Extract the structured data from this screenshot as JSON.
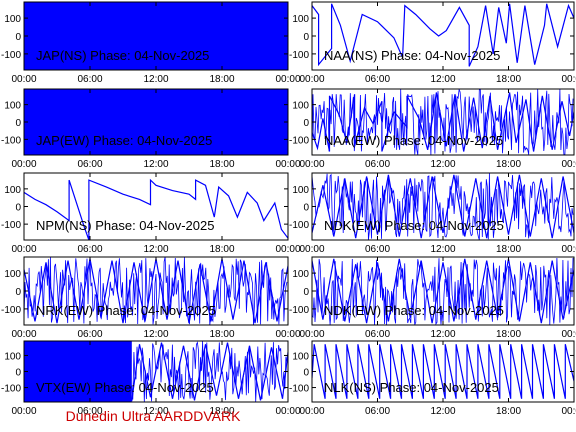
{
  "figure": {
    "footer": "Dunedin Ultra AARDDVARK",
    "footer_color": "#cc0000",
    "trace_color": "#0000ff",
    "frame_color": "#000000",
    "background": "#ffffff"
  },
  "chart_data": [
    {
      "type": "line",
      "title": "JAP(NS) Phase: 04-Nov-2025",
      "fill": "solid",
      "xlim": [
        0,
        24
      ],
      "ylim": [
        -190,
        190
      ],
      "x_ticks": [
        0,
        6,
        12,
        18,
        24
      ],
      "x_tick_labels": [
        "00:00",
        "06:00",
        "12:00",
        "18:00",
        "00:00"
      ],
      "y_ticks": [
        100,
        0,
        -100
      ],
      "y_tick_labels": [
        "100",
        "0",
        "-100"
      ],
      "grid": false,
      "legend": "none"
    },
    {
      "type": "line",
      "title": "NAA(NS) Phase: 04-Nov-2025",
      "fill": "sawtooth",
      "xlim": [
        0,
        24
      ],
      "ylim": [
        -190,
        190
      ],
      "x_ticks": [
        0,
        6,
        12,
        18,
        24
      ],
      "x_tick_labels": [
        "00:00",
        "06:00",
        "12:00",
        "18:00",
        "00:00"
      ],
      "y_ticks": [
        100,
        0,
        -100
      ],
      "y_tick_labels": [
        "100",
        "0",
        "-100"
      ],
      "grid": false,
      "legend": "none",
      "series": [
        {
          "x": [
            0,
            0.6,
            0.6,
            1.8,
            1.8,
            2.6,
            3.5,
            4.6,
            6.0,
            7.5,
            8.3,
            8.5,
            9.5,
            10.8,
            11.6,
            12.3,
            13.5,
            14.4,
            14.4,
            15.2,
            15.9,
            16.6,
            17.1,
            17.8,
            18.1,
            18.8,
            19.5,
            20.4,
            21.3,
            21.5,
            22.5,
            23.5,
            24
          ],
          "y": [
            170,
            120,
            -160,
            -70,
            180,
            60,
            -140,
            120,
            80,
            -10,
            -120,
            170,
            120,
            40,
            0,
            30,
            160,
            60,
            -170,
            -60,
            170,
            -100,
            160,
            -40,
            180,
            -150,
            170,
            -160,
            60,
            180,
            -60,
            170,
            100
          ]
        }
      ]
    },
    {
      "type": "line",
      "title": "JAP(EW) Phase: 04-Nov-2025",
      "fill": "solid",
      "xlim": [
        0,
        24
      ],
      "ylim": [
        -190,
        190
      ],
      "x_ticks": [
        0,
        6,
        12,
        18,
        24
      ],
      "x_tick_labels": [
        "00:00",
        "06:00",
        "12:00",
        "18:00",
        "00:00"
      ],
      "y_ticks": [
        100,
        0,
        -100
      ],
      "y_tick_labels": [
        "100",
        "0",
        "-100"
      ],
      "grid": false,
      "legend": "none"
    },
    {
      "type": "line",
      "title": "NAA(EW) Phase: 04-Nov-2025",
      "fill": "dense",
      "xlim": [
        0,
        24
      ],
      "ylim": [
        -190,
        190
      ],
      "x_ticks": [
        0,
        6,
        12,
        18,
        24
      ],
      "x_tick_labels": [
        "00:00",
        "06:00",
        "12:00",
        "18:00",
        "00:00"
      ],
      "y_ticks": [
        100,
        0,
        -100
      ],
      "y_tick_labels": [
        "100",
        "0",
        "-100"
      ],
      "grid": false,
      "legend": "none",
      "series": [
        {
          "x": [
            0,
            0.5,
            1.0,
            1.6,
            1.6,
            2.5,
            3.2,
            3.9,
            3.9,
            4.8,
            5.6,
            6.4,
            6.4,
            7.5,
            8.7,
            8.7,
            9.8,
            10.6,
            11.4,
            12.3,
            13.1,
            13.9,
            14.8,
            15.6,
            16.3,
            17.0,
            18.1,
            18.7,
            19.6,
            20.3,
            21.1,
            22.0,
            22.9,
            23.6,
            24
          ],
          "y": [
            -60,
            -150,
            20,
            -170,
            150,
            40,
            -120,
            160,
            -140,
            80,
            -10,
            120,
            -170,
            60,
            -30,
            150,
            20,
            -160,
            170,
            -140,
            160,
            -170,
            140,
            -150,
            150,
            -160,
            170,
            -120,
            130,
            -170,
            150,
            -160,
            120,
            -80,
            60
          ]
        }
      ]
    },
    {
      "type": "line",
      "title": "NPM(NS) Phase: 04-Nov-2025",
      "fill": "sawtooth",
      "xlim": [
        0,
        24
      ],
      "ylim": [
        -190,
        190
      ],
      "x_ticks": [
        0,
        6,
        12,
        18,
        24
      ],
      "x_tick_labels": [
        "00:00",
        "06:00",
        "12:00",
        "18:00",
        "00:00"
      ],
      "y_ticks": [
        100,
        0,
        -100
      ],
      "y_tick_labels": [
        "100",
        "0",
        "-100"
      ],
      "grid": false,
      "legend": "none",
      "series": [
        {
          "x": [
            0,
            1.0,
            2.0,
            3.0,
            4.1,
            4.1,
            5.5,
            5.9,
            5.9,
            7.5,
            9.0,
            10.5,
            11.5,
            11.5,
            12.0,
            13.5,
            15.0,
            15.6,
            15.6,
            16.5,
            17.3,
            17.7,
            18.6,
            19.4,
            20.3,
            21.2,
            21.8,
            22.8,
            23.4,
            24
          ],
          "y": [
            80,
            40,
            10,
            -30,
            -80,
            150,
            -120,
            -190,
            150,
            110,
            70,
            40,
            10,
            150,
            120,
            90,
            70,
            40,
            150,
            120,
            -60,
            110,
            60,
            -60,
            80,
            20,
            -80,
            20,
            -130,
            -180
          ]
        }
      ]
    },
    {
      "type": "line",
      "title": "NDK(EW) Phase: 04-Nov-2025",
      "fill": "dense",
      "xlim": [
        0,
        24
      ],
      "ylim": [
        -190,
        190
      ],
      "x_ticks": [
        0,
        6,
        12,
        18,
        24
      ],
      "x_tick_labels": [
        "00:00",
        "06:00",
        "12:00",
        "18:00",
        "00:00"
      ],
      "y_ticks": [
        100,
        0,
        -100
      ],
      "y_tick_labels": [
        "100",
        "0",
        "-100"
      ],
      "grid": false,
      "legend": "none",
      "series": [
        {
          "x": [
            0,
            1.0,
            2.0,
            3.0,
            4.0,
            5.0,
            6.0,
            7.0,
            8.0,
            9.0,
            10.0,
            11.0,
            12.0,
            13.0,
            14.0,
            15.0,
            16.0,
            17.0,
            18.0,
            19.0,
            20.0,
            21.0,
            22.0,
            23.0,
            24
          ],
          "y": [
            -150,
            120,
            -170,
            160,
            -180,
            170,
            -160,
            180,
            -170,
            160,
            -180,
            170,
            -150,
            180,
            -170,
            160,
            -180,
            170,
            -160,
            180,
            -170,
            160,
            -180,
            170,
            -150
          ]
        }
      ]
    },
    {
      "type": "line",
      "title": "NRK(EW) Phase: 04-Nov-2025",
      "fill": "dense",
      "xlim": [
        0,
        24
      ],
      "ylim": [
        -190,
        190
      ],
      "x_ticks": [
        0,
        6,
        12,
        18,
        24
      ],
      "x_tick_labels": [
        "00:00",
        "06:00",
        "12:00",
        "18:00",
        "00:00"
      ],
      "y_ticks": [
        100,
        0,
        -100
      ],
      "y_tick_labels": [
        "100",
        "0",
        "-100"
      ],
      "grid": false,
      "legend": "none",
      "series": [
        {
          "x": [
            0,
            1.0,
            2.0,
            3.0,
            4.0,
            5.0,
            6.0,
            7.0,
            8.0,
            9.0,
            10.0,
            11.0,
            12.0,
            13.0,
            14.0,
            15.0,
            16.0,
            17.0,
            18.0,
            19.0,
            20.0,
            21.0,
            22.0,
            23.0,
            24
          ],
          "y": [
            120,
            -170,
            160,
            -180,
            170,
            -160,
            180,
            -150,
            170,
            -180,
            160,
            -170,
            180,
            -160,
            170,
            -180,
            150,
            -170,
            180,
            -160,
            170,
            -180,
            160,
            -170,
            140
          ]
        }
      ]
    },
    {
      "type": "line",
      "title": "NDK(EW) Phase: 04-Nov-2025",
      "fill": "dense",
      "xlim": [
        0,
        24
      ],
      "ylim": [
        -190,
        190
      ],
      "x_ticks": [
        0,
        6,
        12,
        18,
        24
      ],
      "x_tick_labels": [
        "00:00",
        "06:00",
        "12:00",
        "18:00",
        "00:00"
      ],
      "y_ticks": [
        100,
        0,
        -100
      ],
      "y_tick_labels": [
        "100",
        "0",
        "-100"
      ],
      "grid": false,
      "legend": "none",
      "series": [
        {
          "x": [
            0,
            1.0,
            2.0,
            3.0,
            4.0,
            5.0,
            6.0,
            7.0,
            8.0,
            9.0,
            10.0,
            11.0,
            12.0,
            13.0,
            14.0,
            15.0,
            16.0,
            17.0,
            18.0,
            19.0,
            20.0,
            21.0,
            22.0,
            23.0,
            24
          ],
          "y": [
            170,
            -160,
            180,
            -170,
            150,
            -180,
            160,
            -170,
            180,
            -150,
            170,
            -180,
            160,
            -170,
            180,
            -160,
            170,
            -150,
            180,
            -170,
            160,
            -180,
            170,
            -160,
            120
          ]
        }
      ]
    },
    {
      "type": "line",
      "title": "VTX(EW) Phase: 04-Nov-2025",
      "fill": "solid-left",
      "xlim": [
        0,
        24
      ],
      "ylim": [
        -190,
        190
      ],
      "x_ticks": [
        0,
        6,
        12,
        18,
        24
      ],
      "x_tick_labels": [
        "00:00",
        "06:00",
        "12:00",
        "18:00",
        "00:00"
      ],
      "y_ticks": [
        100,
        0,
        -100
      ],
      "y_tick_labels": [
        "100",
        "0",
        "-100"
      ],
      "grid": false,
      "legend": "none",
      "series": [
        {
          "x": [
            0,
            9.8,
            10.5,
            11.5,
            12.5,
            13.5,
            14.5,
            15.5,
            16.5,
            17.5,
            18.5,
            19.5,
            20.5,
            21.5,
            22.5,
            23.5,
            24
          ],
          "y": [
            180,
            -180,
            170,
            -160,
            180,
            -170,
            160,
            -180,
            170,
            -150,
            180,
            -170,
            160,
            -180,
            150,
            -170,
            120
          ]
        }
      ]
    },
    {
      "type": "line",
      "title": "NLK(NS) Phase: 04-Nov-2025",
      "fill": "sawtooth",
      "xlim": [
        0,
        24
      ],
      "ylim": [
        -190,
        190
      ],
      "x_ticks": [
        0,
        6,
        12,
        18,
        24
      ],
      "x_tick_labels": [
        "00:00",
        "06:00",
        "12:00",
        "18:00",
        "00:00"
      ],
      "y_ticks": [
        100,
        0,
        -100
      ],
      "y_tick_labels": [
        "100",
        "0",
        "-100"
      ],
      "grid": false,
      "legend": "none",
      "series": [
        {
          "x": [
            0,
            0.2,
            1.2,
            1.2,
            2.2,
            2.2,
            3.2,
            3.2,
            4.2,
            4.2,
            5.2,
            5.2,
            6.2,
            6.2,
            7.2,
            7.2,
            8.2,
            8.2,
            9.2,
            9.2,
            10.2,
            10.2,
            11.2,
            11.2,
            12.2,
            12.2,
            13.2,
            13.2,
            14.2,
            14.2,
            15.2,
            15.2,
            16.2,
            16.2,
            17.2,
            17.2,
            18.2,
            18.2,
            19.2,
            19.2,
            20.2,
            20.2,
            21.2,
            21.2,
            22.2,
            22.2,
            23.2,
            23.2,
            24
          ],
          "y": [
            -40,
            170,
            -170,
            170,
            -170,
            170,
            -170,
            170,
            -170,
            170,
            -170,
            170,
            -170,
            170,
            -170,
            170,
            -170,
            170,
            -170,
            170,
            -170,
            170,
            -170,
            170,
            -170,
            170,
            -170,
            170,
            -170,
            170,
            -170,
            170,
            -170,
            170,
            -170,
            170,
            -170,
            170,
            -170,
            170,
            -170,
            170,
            -170,
            170,
            -170,
            170,
            -170,
            170,
            -60
          ]
        }
      ]
    }
  ]
}
